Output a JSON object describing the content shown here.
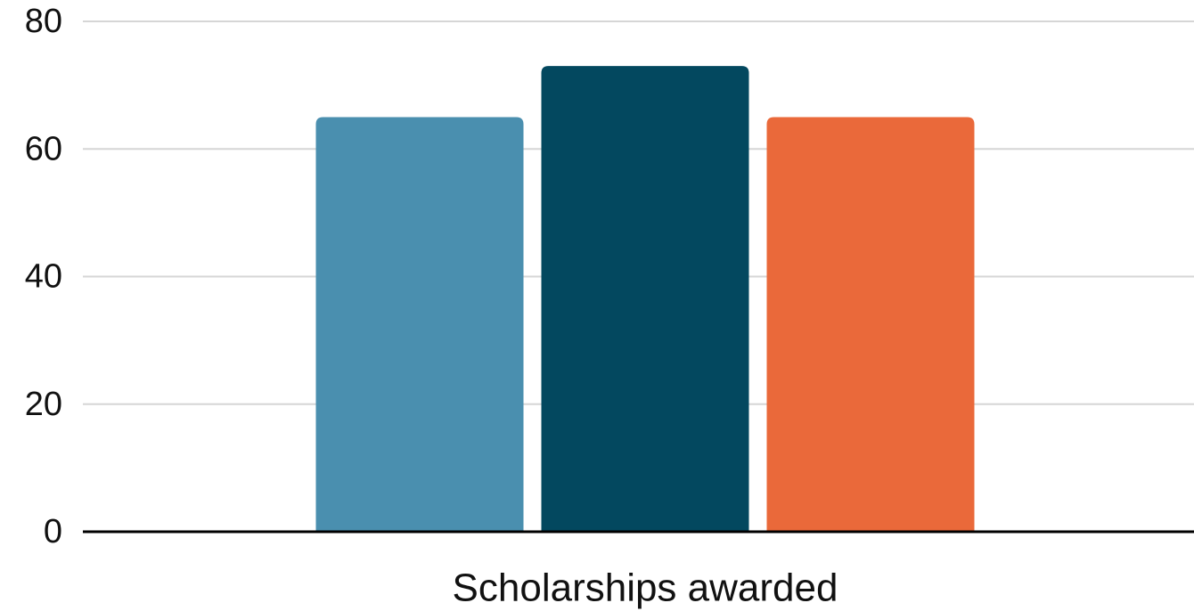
{
  "chart_data": {
    "type": "bar",
    "title": "",
    "xlabel": "",
    "ylabel": "",
    "categories": [
      "Scholarships awarded"
    ],
    "series": [
      {
        "values": [
          65
        ],
        "color": "#4a8faf"
      },
      {
        "values": [
          73
        ],
        "color": "#03485f"
      },
      {
        "values": [
          65
        ],
        "color": "#ea693a"
      }
    ],
    "ylim": [
      0,
      80
    ],
    "yticks": [
      0,
      20,
      40,
      60,
      80
    ],
    "grid": true,
    "legend": "none"
  }
}
